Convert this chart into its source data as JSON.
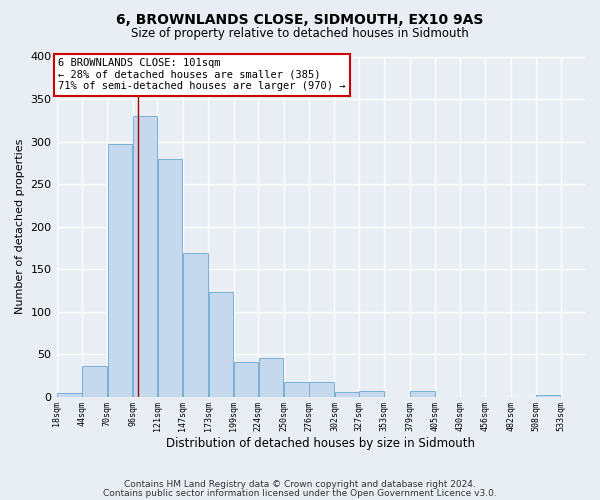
{
  "title": "6, BROWNLANDS CLOSE, SIDMOUTH, EX10 9AS",
  "subtitle": "Size of property relative to detached houses in Sidmouth",
  "xlabel": "Distribution of detached houses by size in Sidmouth",
  "ylabel": "Number of detached properties",
  "bar_left_edges": [
    18,
    44,
    70,
    96,
    121,
    147,
    173,
    199,
    224,
    250,
    276,
    302,
    327,
    353,
    379,
    405,
    430,
    456,
    482,
    508
  ],
  "bar_widths": [
    26,
    26,
    26,
    25,
    26,
    26,
    26,
    25,
    26,
    26,
    26,
    25,
    26,
    26,
    26,
    25,
    26,
    26,
    26,
    25
  ],
  "bar_heights": [
    4,
    36,
    297,
    330,
    279,
    169,
    123,
    41,
    45,
    17,
    17,
    5,
    6,
    0,
    6,
    0,
    0,
    0,
    0,
    2
  ],
  "tick_labels": [
    "18sqm",
    "44sqm",
    "70sqm",
    "96sqm",
    "121sqm",
    "147sqm",
    "173sqm",
    "199sqm",
    "224sqm",
    "250sqm",
    "276sqm",
    "302sqm",
    "327sqm",
    "353sqm",
    "379sqm",
    "405sqm",
    "430sqm",
    "456sqm",
    "482sqm",
    "508sqm",
    "533sqm"
  ],
  "bar_color": "#c5d8ed",
  "bar_edge_color": "#7aafd4",
  "property_line_x": 101,
  "property_line_color": "#aa0000",
  "annotation_text": "6 BROWNLANDS CLOSE: 101sqm\n← 28% of detached houses are smaller (385)\n71% of semi-detached houses are larger (970) →",
  "annotation_box_color": "#ffffff",
  "annotation_box_edge": "#cc0000",
  "ylim": [
    0,
    400
  ],
  "yticks": [
    0,
    50,
    100,
    150,
    200,
    250,
    300,
    350,
    400
  ],
  "footer_line1": "Contains HM Land Registry data © Crown copyright and database right 2024.",
  "footer_line2": "Contains public sector information licensed under the Open Government Licence v3.0.",
  "background_color": "#e8eef4",
  "grid_color": "#ffffff"
}
